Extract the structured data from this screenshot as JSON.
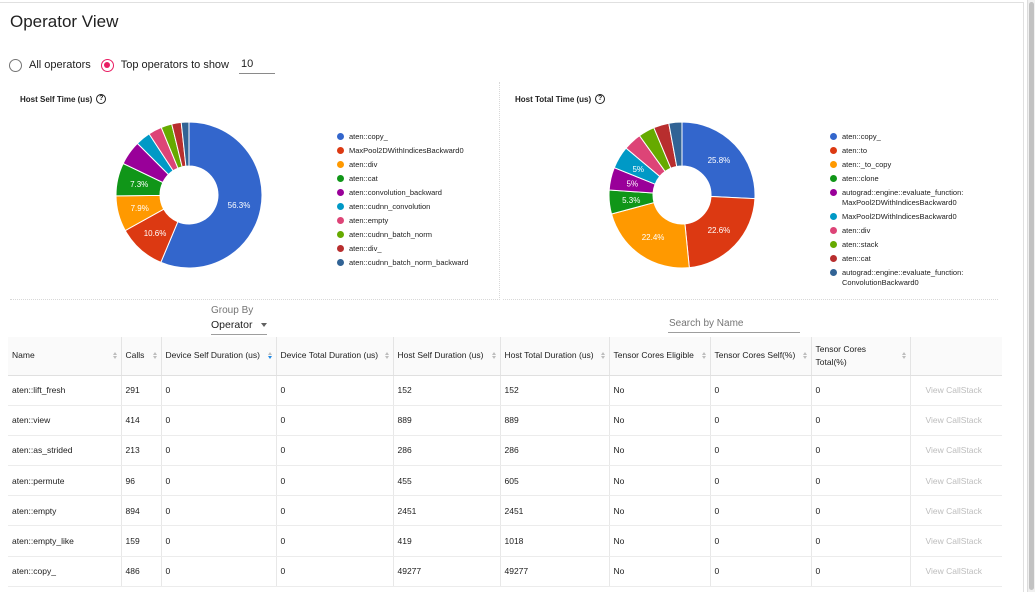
{
  "page": {
    "title": "Operator View"
  },
  "filter": {
    "all_label": "All operators",
    "top_label": "Top operators to show",
    "top_value": "10",
    "selected": "top"
  },
  "charts": {
    "left": {
      "title": "Host Self Time (us)",
      "legend": [
        {
          "label": "aten::copy_",
          "color": "#3366cc"
        },
        {
          "label": "MaxPool2DWithIndicesBackward0",
          "color": "#dc3912"
        },
        {
          "label": "aten::div",
          "color": "#ff9900"
        },
        {
          "label": "aten::cat",
          "color": "#109618"
        },
        {
          "label": "aten::convolution_backward",
          "color": "#990099"
        },
        {
          "label": "aten::cudnn_convolution",
          "color": "#0099c6"
        },
        {
          "label": "aten::empty",
          "color": "#dd4477"
        },
        {
          "label": "aten::cudnn_batch_norm",
          "color": "#66aa00"
        },
        {
          "label": "aten::div_",
          "color": "#b82e2e"
        },
        {
          "label": "aten::cudnn_batch_norm_backward",
          "color": "#316395"
        }
      ]
    },
    "right": {
      "title": "Host Total Time (us)",
      "legend": [
        {
          "label": "aten::copy_",
          "color": "#3366cc"
        },
        {
          "label": "aten::to",
          "color": "#dc3912"
        },
        {
          "label": "aten::_to_copy",
          "color": "#ff9900"
        },
        {
          "label": "aten::clone",
          "color": "#109618"
        },
        {
          "label": "autograd::engine::evaluate_function:\nMaxPool2DWithIndicesBackward0",
          "color": "#990099"
        },
        {
          "label": "MaxPool2DWithIndicesBackward0",
          "color": "#0099c6"
        },
        {
          "label": "aten::div",
          "color": "#dd4477"
        },
        {
          "label": "aten::stack",
          "color": "#66aa00"
        },
        {
          "label": "aten::cat",
          "color": "#b82e2e"
        },
        {
          "label": "autograd::engine::evaluate_function:\nConvolutionBackward0",
          "color": "#316395"
        }
      ]
    }
  },
  "chart_data": [
    {
      "type": "pie",
      "title": "Host Self Time (us)",
      "categories": [
        "aten::copy_",
        "MaxPool2DWithIndicesBackward0",
        "aten::div",
        "aten::cat",
        "aten::convolution_backward",
        "aten::cudnn_convolution",
        "aten::empty",
        "aten::cudnn_batch_norm",
        "aten::div_",
        "aten::cudnn_batch_norm_backward"
      ],
      "values": [
        56.3,
        10.6,
        7.9,
        7.3,
        5.4,
        3.3,
        3.0,
        2.4,
        2.1,
        1.7
      ],
      "labels": [
        "56.3%",
        "10.6%",
        "7.9%",
        "7.3%",
        "",
        "",
        "",
        "",
        "",
        ""
      ],
      "colors": [
        "#3366cc",
        "#dc3912",
        "#ff9900",
        "#109618",
        "#990099",
        "#0099c6",
        "#dd4477",
        "#66aa00",
        "#b82e2e",
        "#316395"
      ],
      "legend": "right"
    },
    {
      "type": "pie",
      "title": "Host Total Time (us)",
      "categories": [
        "aten::copy_",
        "aten::to",
        "aten::_to_copy",
        "aten::clone",
        "autograd::engine::evaluate_function: MaxPool2DWithIndicesBackward0",
        "MaxPool2DWithIndicesBackward0",
        "aten::div",
        "aten::stack",
        "aten::cat",
        "autograd::engine::evaluate_function: ConvolutionBackward0"
      ],
      "values": [
        25.8,
        22.6,
        22.4,
        5.3,
        5.0,
        5.0,
        4.0,
        3.6,
        3.4,
        2.9
      ],
      "labels": [
        "25.8%",
        "22.6%",
        "22.4%",
        "5.3%",
        "5%",
        "5%",
        "",
        "",
        "",
        ""
      ],
      "colors": [
        "#3366cc",
        "#dc3912",
        "#ff9900",
        "#109618",
        "#990099",
        "#0099c6",
        "#dd4477",
        "#66aa00",
        "#b82e2e",
        "#316395"
      ],
      "legend": "right"
    }
  ],
  "groupby": {
    "label": "Group By",
    "value": "Operator"
  },
  "search": {
    "placeholder": "Search by Name"
  },
  "table": {
    "columns": [
      "Name",
      "Calls",
      "Device Self Duration (us)",
      "Device Total Duration (us)",
      "Host Self Duration (us)",
      "Host Total Duration (us)",
      "Tensor Cores Eligible",
      "Tensor Cores Self(%)",
      "Tensor Cores Total(%)",
      ""
    ],
    "action_label": "View CallStack",
    "rows": [
      [
        "aten::lift_fresh",
        "291",
        "0",
        "0",
        "152",
        "152",
        "No",
        "0",
        "0"
      ],
      [
        "aten::view",
        "414",
        "0",
        "0",
        "889",
        "889",
        "No",
        "0",
        "0"
      ],
      [
        "aten::as_strided",
        "213",
        "0",
        "0",
        "286",
        "286",
        "No",
        "0",
        "0"
      ],
      [
        "aten::permute",
        "96",
        "0",
        "0",
        "455",
        "605",
        "No",
        "0",
        "0"
      ],
      [
        "aten::empty",
        "894",
        "0",
        "0",
        "2451",
        "2451",
        "No",
        "0",
        "0"
      ],
      [
        "aten::empty_like",
        "159",
        "0",
        "0",
        "419",
        "1018",
        "No",
        "0",
        "0"
      ],
      [
        "aten::copy_",
        "486",
        "0",
        "0",
        "49277",
        "49277",
        "No",
        "0",
        "0"
      ]
    ]
  }
}
